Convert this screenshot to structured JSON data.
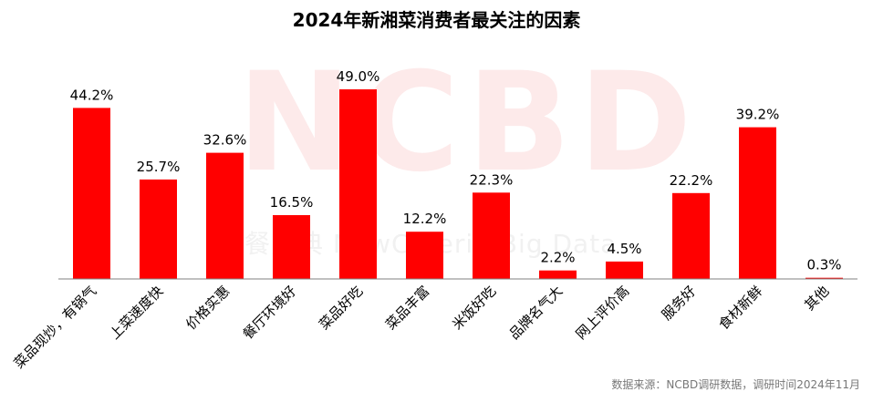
{
  "title": "2024年新湘菜消费者最关注的因素",
  "watermark": "NCBD",
  "watermark_sub": "餐宝典 NewCaterin  Big Data",
  "source": "数据来源：NCBD调研数据，调研时间2024年11月",
  "colors": {
    "bar": "#ff0000",
    "axis": "#808080",
    "label": "#000000"
  },
  "chart_data": {
    "type": "bar",
    "title": "2024年新湘菜消费者最关注的因素",
    "xlabel": "",
    "ylabel": "",
    "ylim": [
      0,
      55
    ],
    "grid": false,
    "categories": [
      "菜品现炒，有锅气",
      "上菜速度快",
      "价格实惠",
      "餐厅环境好",
      "菜品好吃",
      "菜品丰富",
      "米饭好吃",
      "品牌名气大",
      "网上评价高",
      "服务好",
      "食材新鲜",
      "其他"
    ],
    "values": [
      44.2,
      25.7,
      32.6,
      16.5,
      49.0,
      12.2,
      22.3,
      2.2,
      4.5,
      22.2,
      39.2,
      0.3
    ],
    "data_labels": [
      "44.2%",
      "25.7%",
      "32.6%",
      "16.5%",
      "49.0%",
      "12.2%",
      "22.3%",
      "2.2%",
      "4.5%",
      "22.2%",
      "39.2%",
      "0.3%"
    ]
  }
}
